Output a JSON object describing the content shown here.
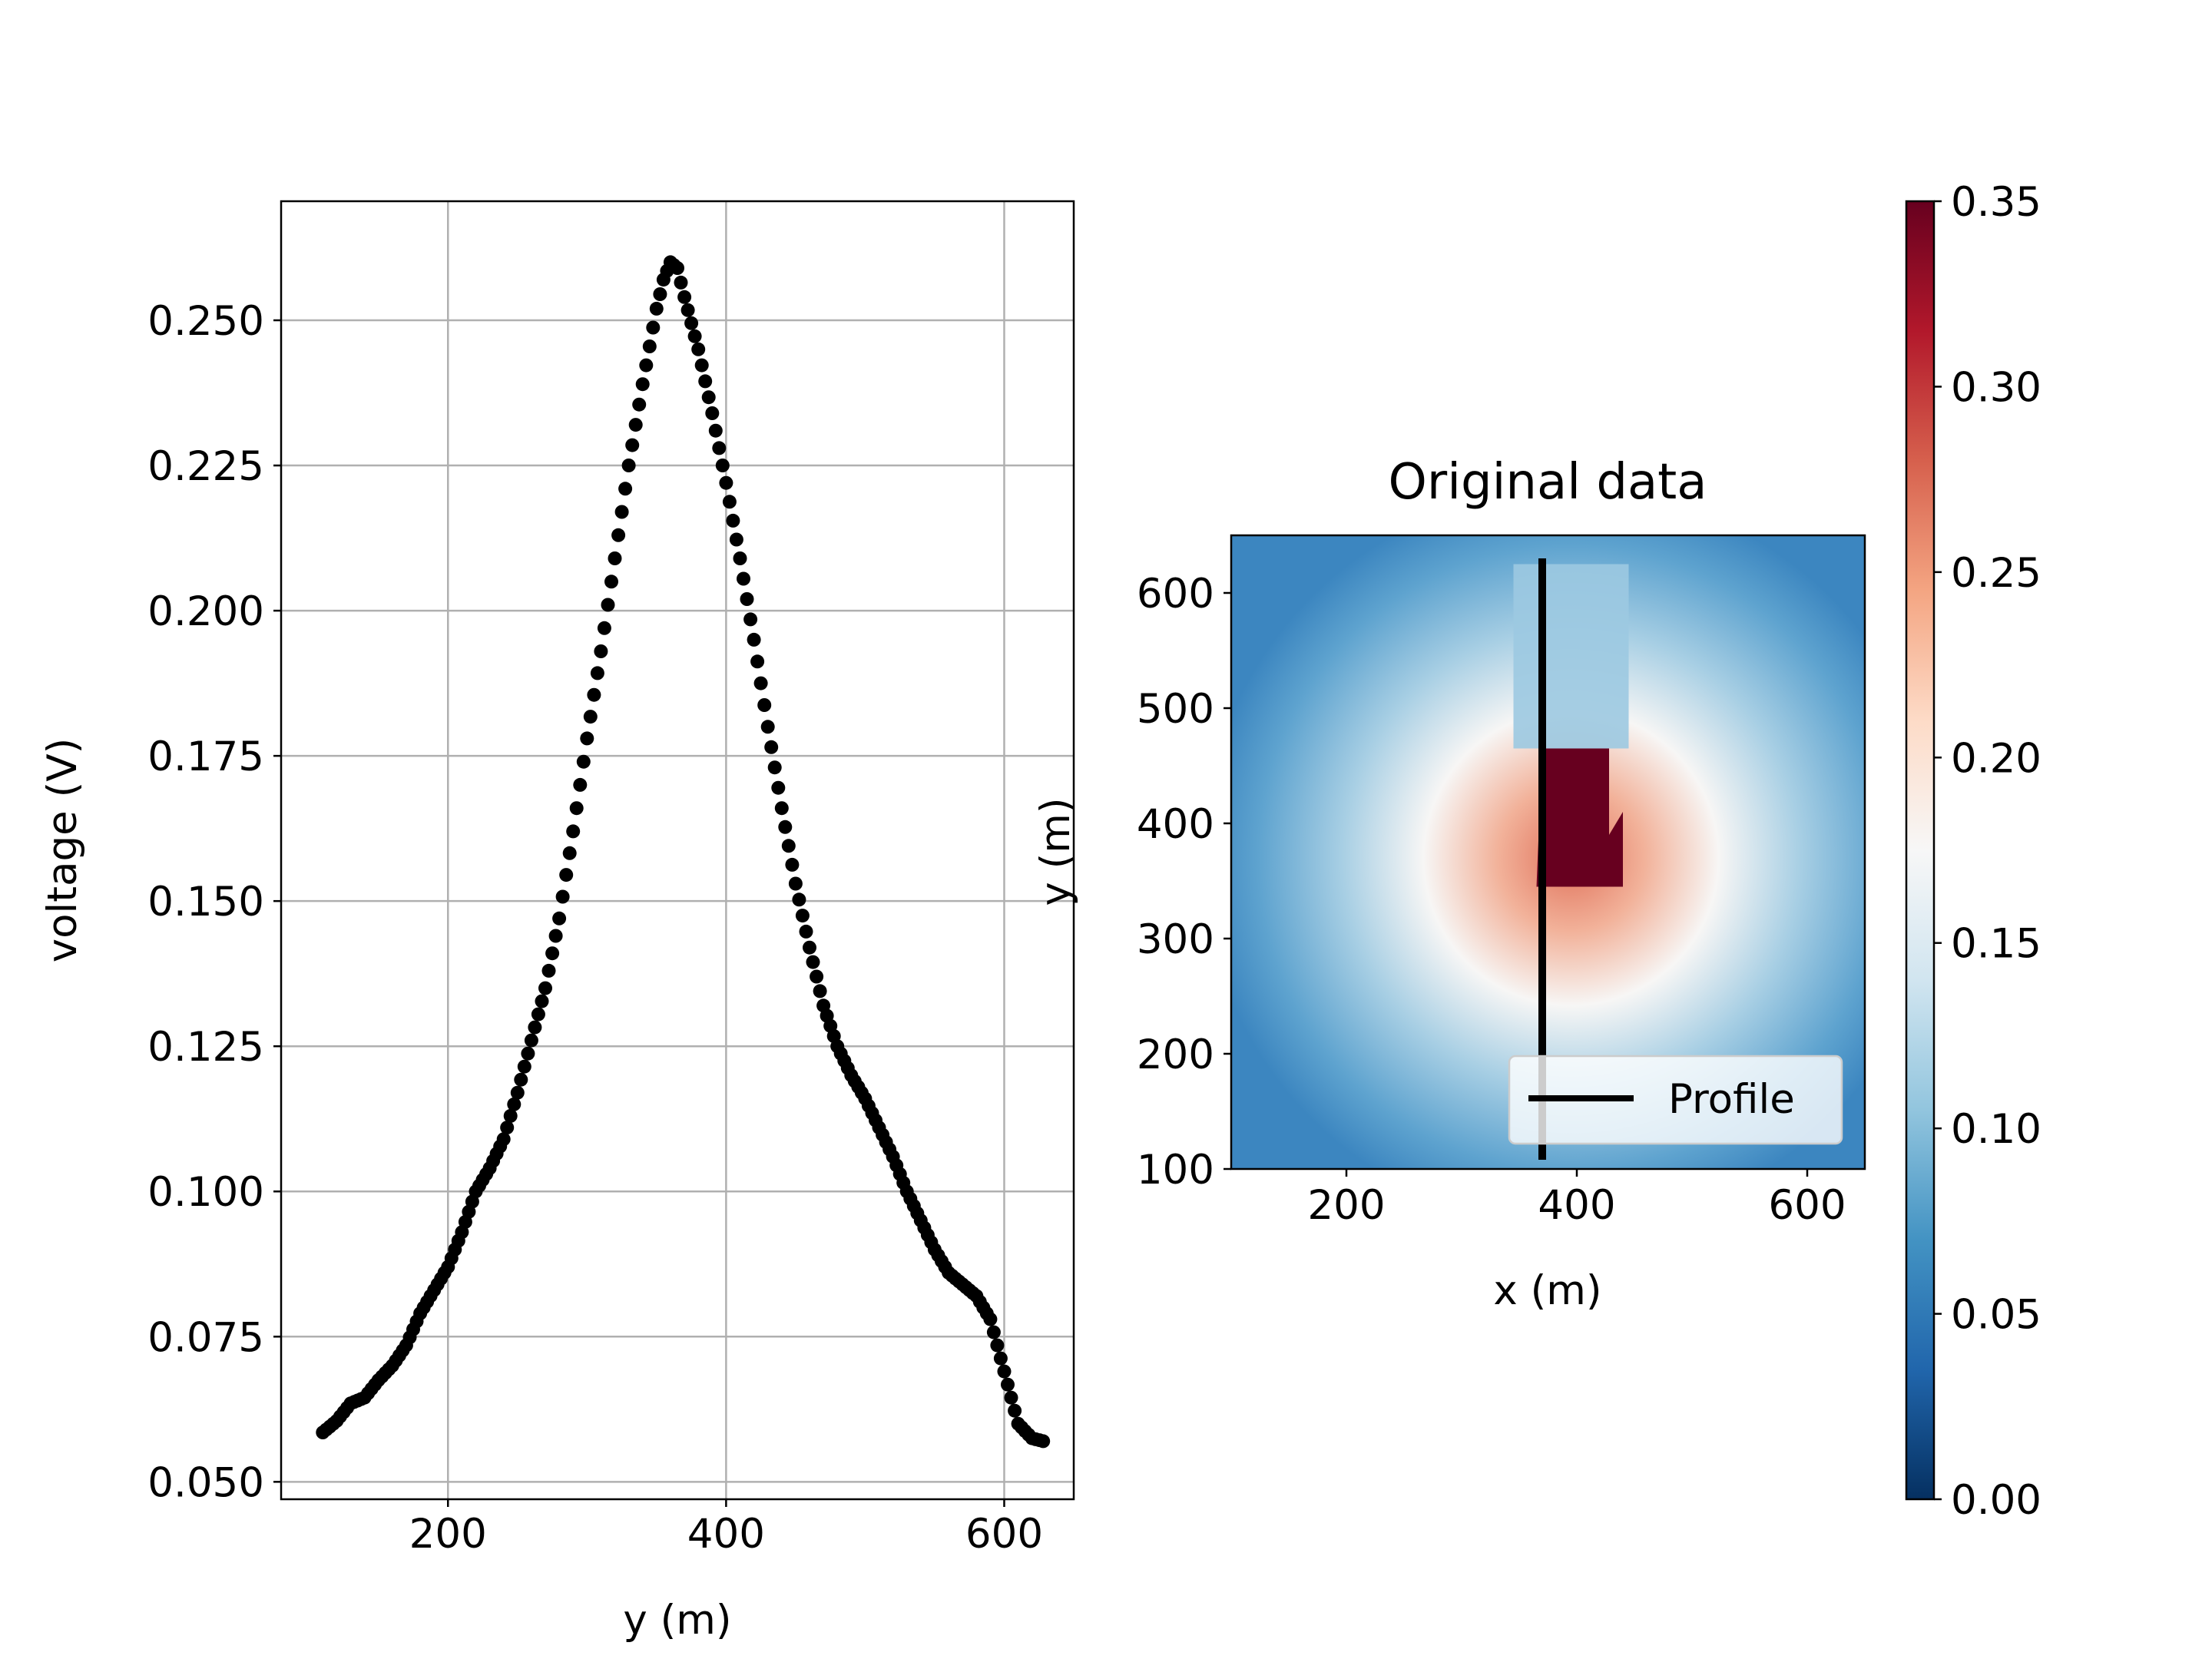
{
  "chart_data": [
    {
      "type": "scatter",
      "xlabel": "y (m)",
      "ylabel": "voltage (V)",
      "xlim": [
        80,
        650
      ],
      "ylim": [
        0.047,
        0.2705
      ],
      "x_ticks": [
        200,
        400,
        600
      ],
      "x_tick_labels": [
        "200",
        "400",
        "600"
      ],
      "y_ticks": [
        0.05,
        0.075,
        0.1,
        0.125,
        0.15,
        0.175,
        0.2,
        0.225,
        0.25
      ],
      "y_tick_labels": [
        "0.050",
        "0.075",
        "0.100",
        "0.125",
        "0.150",
        "0.175",
        "0.200",
        "0.225",
        "0.250"
      ],
      "grid": true,
      "marker_color": "#000000",
      "profile_points": [
        [
          110,
          0.0585
        ],
        [
          120,
          0.0605
        ],
        [
          130,
          0.0635
        ],
        [
          140,
          0.0645
        ],
        [
          150,
          0.0675
        ],
        [
          160,
          0.07
        ],
        [
          170,
          0.0735
        ],
        [
          180,
          0.079
        ],
        [
          190,
          0.083
        ],
        [
          200,
          0.087
        ],
        [
          210,
          0.093
        ],
        [
          220,
          0.1
        ],
        [
          230,
          0.104
        ],
        [
          240,
          0.109
        ],
        [
          250,
          0.117
        ],
        [
          260,
          0.126
        ],
        [
          270,
          0.135
        ],
        [
          280,
          0.147
        ],
        [
          290,
          0.162
        ],
        [
          300,
          0.178
        ],
        [
          310,
          0.193
        ],
        [
          320,
          0.209
        ],
        [
          330,
          0.225
        ],
        [
          340,
          0.239
        ],
        [
          350,
          0.252
        ],
        [
          355,
          0.257
        ],
        [
          360,
          0.26
        ],
        [
          365,
          0.259
        ],
        [
          370,
          0.254
        ],
        [
          380,
          0.245
        ],
        [
          390,
          0.234
        ],
        [
          400,
          0.222
        ],
        [
          410,
          0.209
        ],
        [
          420,
          0.195
        ],
        [
          430,
          0.18
        ],
        [
          440,
          0.166
        ],
        [
          450,
          0.153
        ],
        [
          460,
          0.142
        ],
        [
          470,
          0.132
        ],
        [
          480,
          0.125
        ],
        [
          490,
          0.12
        ],
        [
          500,
          0.116
        ],
        [
          510,
          0.111
        ],
        [
          520,
          0.106
        ],
        [
          530,
          0.1
        ],
        [
          540,
          0.095
        ],
        [
          550,
          0.09
        ],
        [
          560,
          0.086
        ],
        [
          570,
          0.084
        ],
        [
          580,
          0.082
        ],
        [
          590,
          0.078
        ],
        [
          600,
          0.069
        ],
        [
          610,
          0.06
        ],
        [
          620,
          0.0575
        ],
        [
          628,
          0.057
        ]
      ]
    },
    {
      "type": "heatmap",
      "title": "Original data",
      "xlabel": "x (m)",
      "ylabel": "y (m)",
      "xlim": [
        100,
        650
      ],
      "ylim": [
        100,
        650
      ],
      "x_ticks": [
        200,
        400,
        600
      ],
      "x_tick_labels": [
        "200",
        "400",
        "600"
      ],
      "y_ticks": [
        100,
        200,
        300,
        400,
        500,
        600
      ],
      "y_tick_labels": [
        "100",
        "200",
        "300",
        "400",
        "500",
        "600"
      ],
      "colormap": "RdBu_r",
      "colorbar": {
        "range": [
          0,
          0.35
        ],
        "ticks": [
          0,
          0.05,
          0.1,
          0.15,
          0.2,
          0.25,
          0.3,
          0.35
        ],
        "tick_labels": [
          "0.00",
          "0.05",
          "0.10",
          "0.15",
          "0.20",
          "0.25",
          "0.30",
          "0.35"
        ]
      },
      "anomaly_center": [
        395,
        370
      ],
      "high_block": {
        "x": [
          365,
          440
        ],
        "y": [
          345,
          465
        ],
        "value": 0.35
      },
      "upper_block": {
        "x": [
          345,
          445
        ],
        "y": [
          465,
          625
        ],
        "value": 0.12
      },
      "profile_line": {
        "x": 370,
        "y": [
          108,
          630
        ],
        "color": "#000000"
      },
      "legend": {
        "label": "Profile",
        "position": "lower right"
      }
    }
  ]
}
